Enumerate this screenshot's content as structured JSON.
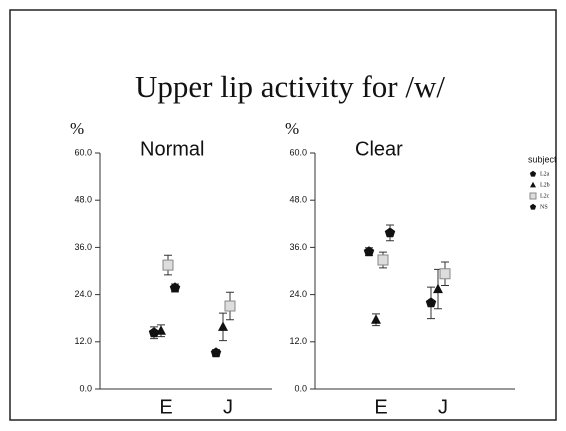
{
  "title": "Upper lip activity for /w/",
  "legend_title": "subject",
  "chart_data": [
    {
      "type": "scatter",
      "title": "Normal",
      "ylabel": "%",
      "categories": [
        "E",
        "J"
      ],
      "ylim": [
        0,
        60
      ],
      "yticks": [
        {
          "value": 0,
          "label": "0.0"
        },
        {
          "value": 12,
          "label": "12.0"
        },
        {
          "value": 24,
          "label": "24.0"
        },
        {
          "value": 36,
          "label": "36.0"
        },
        {
          "value": 48,
          "label": "48.0"
        },
        {
          "value": 60,
          "label": "60.0"
        }
      ],
      "series": [
        {
          "name": "L2a",
          "marker": "pentagon",
          "color": "#111111",
          "values": [
            14.3,
            9.2
          ],
          "errors": [
            1.5,
            0.8
          ]
        },
        {
          "name": "L2b",
          "marker": "triangle",
          "color": "#111111",
          "values": [
            14.8,
            15.8
          ],
          "errors": [
            1.5,
            3.5
          ]
        },
        {
          "name": "L2c",
          "marker": "square",
          "color": "#888888",
          "values": [
            31.5,
            21.1
          ],
          "errors": [
            2.5,
            3.5
          ]
        },
        {
          "name": "NS",
          "marker": "pentagon",
          "color": "#111111",
          "values": [
            25.7,
            null
          ],
          "errors": [
            1.0,
            null
          ]
        }
      ]
    },
    {
      "type": "scatter",
      "title": "Clear",
      "ylabel": "%",
      "categories": [
        "E",
        "J"
      ],
      "ylim": [
        0,
        60
      ],
      "yticks": [
        {
          "value": 0,
          "label": "0.0"
        },
        {
          "value": 12,
          "label": "12.0"
        },
        {
          "value": 24,
          "label": "24.0"
        },
        {
          "value": 36,
          "label": "36.0"
        },
        {
          "value": 48,
          "label": "48.0"
        },
        {
          "value": 60,
          "label": "60.0"
        }
      ],
      "series": [
        {
          "name": "L2a",
          "marker": "pentagon",
          "color": "#111111",
          "values": [
            34.9,
            21.9
          ],
          "errors": [
            1.0,
            4.0
          ]
        },
        {
          "name": "L2b",
          "marker": "triangle",
          "color": "#111111",
          "values": [
            17.6,
            25.4
          ],
          "errors": [
            1.5,
            5.0
          ]
        },
        {
          "name": "L2c",
          "marker": "square",
          "color": "#888888",
          "values": [
            32.8,
            29.3
          ],
          "errors": [
            2.0,
            3.0
          ]
        },
        {
          "name": "NS",
          "marker": "pentagon",
          "color": "#111111",
          "values": [
            39.7,
            null
          ],
          "errors": [
            2.0,
            null
          ]
        }
      ]
    }
  ]
}
